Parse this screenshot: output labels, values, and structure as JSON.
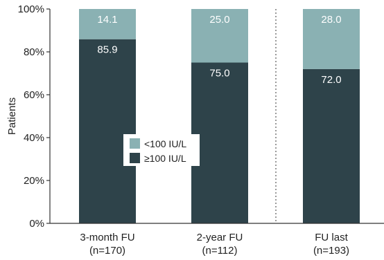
{
  "chart_data": {
    "type": "bar",
    "stacked": true,
    "categories": [
      {
        "line1": "3-month FU",
        "line2": "(n=170)"
      },
      {
        "line1": "2-year FU",
        "line2": "(n=112)"
      },
      {
        "line1": "FU last",
        "line2": "(n=193)"
      }
    ],
    "series": [
      {
        "name": "≥100 IU/L",
        "color": "#2e434a",
        "label_color": "#ffffff",
        "values": [
          85.9,
          75.0,
          72.0
        ],
        "labels": [
          "85.9",
          "75.0",
          "72.0"
        ]
      },
      {
        "name": "<100 IU/L",
        "color": "#8ab1b3",
        "label_color": "#ffffff",
        "values": [
          14.1,
          25.0,
          28.0
        ],
        "labels": [
          "14.1",
          "25.0",
          "28.0"
        ]
      }
    ],
    "ylabel": "Patients",
    "ylim": [
      0,
      100
    ],
    "yticks": [
      "0%",
      "20%",
      "40%",
      "60%",
      "80%",
      "100%"
    ],
    "ytick_values": [
      0,
      20,
      40,
      60,
      80,
      100
    ],
    "legend": {
      "placement": "center",
      "entries": [
        {
          "label": "<100 IU/L",
          "color": "#8ab1b3"
        },
        {
          "label": "≥100 IU/L",
          "color": "#2e434a"
        }
      ]
    },
    "separator": "dotted line between 2-year FU and FU last",
    "grid": false
  }
}
